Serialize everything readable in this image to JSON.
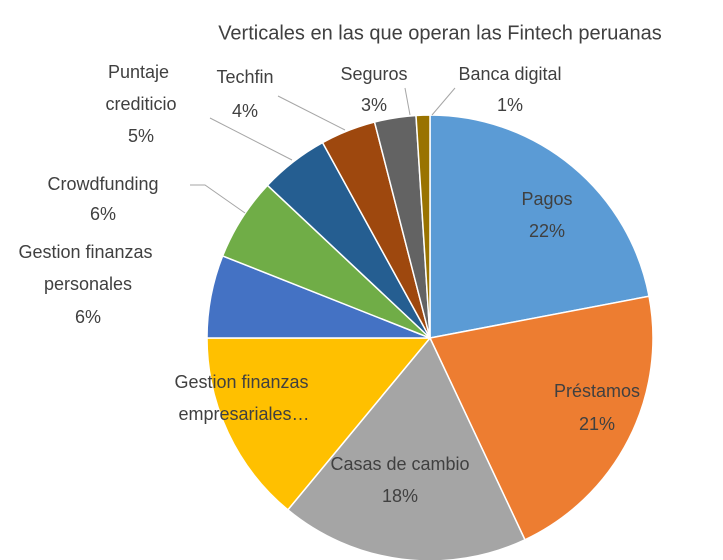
{
  "chart_data": {
    "type": "pie",
    "title": "Verticales en las que operan las Fintech peruanas",
    "categories": [
      "Pagos",
      "Préstamos",
      "Casas de cambio",
      "Gestion finanzas empresariales…",
      "Gestion finanzas personales",
      "Crowdfunding",
      "Puntaje crediticio",
      "Techfin",
      "Seguros",
      "Banca digital"
    ],
    "values": [
      22,
      21,
      18,
      14,
      6,
      6,
      5,
      4,
      3,
      1
    ],
    "value_labels": [
      "22%",
      "21%",
      "18%",
      null,
      "6%",
      "6%",
      "5%",
      "4%",
      "3%",
      "1%"
    ],
    "colors": [
      "#5b9bd5",
      "#ed7d31",
      "#a5a5a5",
      "#ffc000",
      "#4472c4",
      "#70ad47",
      "#255e91",
      "#9e480e",
      "#636363",
      "#997300"
    ]
  }
}
